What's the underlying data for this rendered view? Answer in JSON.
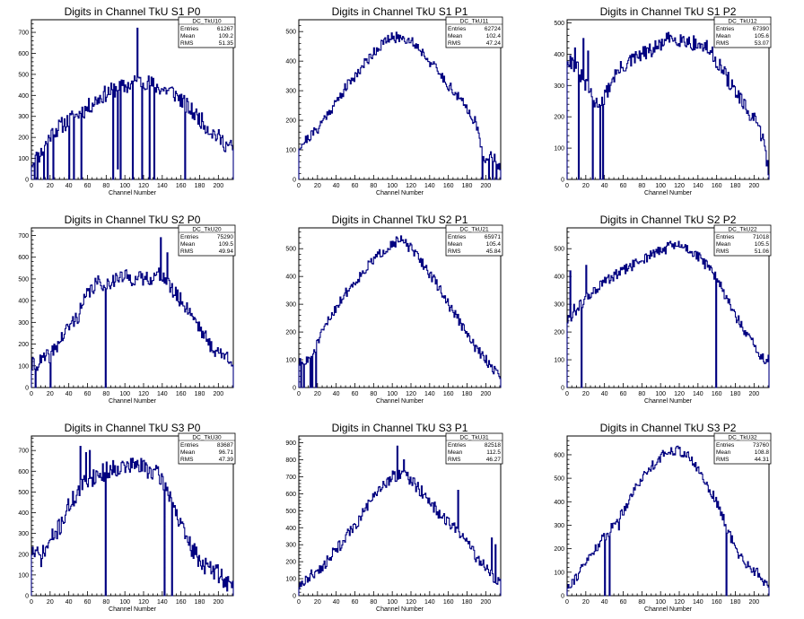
{
  "chart_data": [
    {
      "type": "histogram",
      "title": "Digits in Channel TkU S1 P0",
      "xlabel": "Channel Number",
      "ylabel": "",
      "xlim": [
        0,
        216
      ],
      "ylim": [
        0,
        760
      ],
      "xticks": [
        0,
        20,
        40,
        60,
        80,
        100,
        120,
        140,
        160,
        180,
        200
      ],
      "yticks": [
        0,
        100,
        200,
        300,
        400,
        500,
        600,
        700
      ],
      "stats": {
        "name": "DC_TkU10",
        "entries": "61267",
        "mean": "109.2",
        "rms": "51.35"
      },
      "anchors": [
        [
          0,
          80
        ],
        [
          10,
          120
        ],
        [
          20,
          210
        ],
        [
          30,
          250
        ],
        [
          40,
          280
        ],
        [
          50,
          310
        ],
        [
          60,
          340
        ],
        [
          70,
          380
        ],
        [
          80,
          410
        ],
        [
          90,
          430
        ],
        [
          100,
          440
        ],
        [
          110,
          460
        ],
        [
          120,
          470
        ],
        [
          130,
          450
        ],
        [
          140,
          430
        ],
        [
          150,
          420
        ],
        [
          160,
          380
        ],
        [
          170,
          330
        ],
        [
          180,
          290
        ],
        [
          190,
          240
        ],
        [
          200,
          200
        ],
        [
          210,
          160
        ],
        [
          215,
          150
        ]
      ],
      "noise": 40,
      "seed": 11,
      "spikes": [
        [
          3,
          0
        ],
        [
          6,
          0
        ],
        [
          9,
          110
        ],
        [
          13,
          0
        ],
        [
          17,
          0
        ],
        [
          23,
          0
        ],
        [
          40,
          0
        ],
        [
          45,
          0
        ],
        [
          53,
          0
        ],
        [
          87,
          0
        ],
        [
          92,
          50
        ],
        [
          95,
          0
        ],
        [
          108,
          0
        ],
        [
          113,
          720
        ],
        [
          118,
          0
        ],
        [
          126,
          0
        ],
        [
          131,
          0
        ],
        [
          164,
          0
        ]
      ]
    },
    {
      "type": "histogram",
      "title": "Digits in Channel TkU S1 P1",
      "xlabel": "Channel Number",
      "ylabel": "",
      "xlim": [
        0,
        216
      ],
      "ylim": [
        0,
        540
      ],
      "xticks": [
        0,
        20,
        40,
        60,
        80,
        100,
        120,
        140,
        160,
        180,
        200
      ],
      "yticks": [
        0,
        100,
        200,
        300,
        400,
        500
      ],
      "stats": {
        "name": "DC_TkU11",
        "entries": "62724",
        "mean": "102.4",
        "rms": "47.24"
      },
      "anchors": [
        [
          0,
          110
        ],
        [
          10,
          140
        ],
        [
          20,
          170
        ],
        [
          30,
          220
        ],
        [
          40,
          260
        ],
        [
          50,
          310
        ],
        [
          60,
          350
        ],
        [
          70,
          390
        ],
        [
          80,
          430
        ],
        [
          90,
          460
        ],
        [
          100,
          480
        ],
        [
          110,
          480
        ],
        [
          120,
          470
        ],
        [
          130,
          440
        ],
        [
          140,
          400
        ],
        [
          150,
          360
        ],
        [
          160,
          320
        ],
        [
          170,
          280
        ],
        [
          180,
          240
        ],
        [
          190,
          190
        ],
        [
          195,
          100
        ],
        [
          200,
          70
        ],
        [
          210,
          80
        ],
        [
          215,
          40
        ]
      ],
      "noise": 18,
      "seed": 21,
      "spikes": [
        [
          196,
          0
        ],
        [
          203,
          0
        ],
        [
          207,
          0
        ],
        [
          211,
          0
        ]
      ]
    },
    {
      "type": "histogram",
      "title": "Digits in Channel TkU S1 P2",
      "xlabel": "Channel Number",
      "ylabel": "",
      "xlim": [
        0,
        216
      ],
      "ylim": [
        0,
        510
      ],
      "xticks": [
        0,
        20,
        40,
        60,
        80,
        100,
        120,
        140,
        160,
        180,
        200
      ],
      "yticks": [
        0,
        100,
        200,
        300,
        400,
        500
      ],
      "stats": {
        "name": "DC_TkU12",
        "entries": "67390",
        "mean": "105.6",
        "rms": "53.07"
      },
      "anchors": [
        [
          0,
          390
        ],
        [
          10,
          360
        ],
        [
          20,
          300
        ],
        [
          30,
          240
        ],
        [
          40,
          260
        ],
        [
          50,
          330
        ],
        [
          60,
          360
        ],
        [
          70,
          380
        ],
        [
          80,
          400
        ],
        [
          90,
          410
        ],
        [
          100,
          430
        ],
        [
          110,
          450
        ],
        [
          120,
          450
        ],
        [
          130,
          440
        ],
        [
          140,
          430
        ],
        [
          150,
          420
        ],
        [
          160,
          380
        ],
        [
          170,
          330
        ],
        [
          180,
          280
        ],
        [
          190,
          230
        ],
        [
          200,
          190
        ],
        [
          210,
          130
        ],
        [
          215,
          30
        ]
      ],
      "noise": 25,
      "seed": 31,
      "spikes": [
        [
          8,
          420
        ],
        [
          12,
          0
        ],
        [
          17,
          450
        ],
        [
          22,
          410
        ],
        [
          27,
          0
        ],
        [
          35,
          0
        ],
        [
          38,
          0
        ]
      ]
    },
    {
      "type": "histogram",
      "title": "Digits in Channel TkU S2 P0",
      "xlabel": "Channel Number",
      "ylabel": "",
      "xlim": [
        0,
        216
      ],
      "ylim": [
        0,
        735
      ],
      "xticks": [
        0,
        20,
        40,
        60,
        80,
        100,
        120,
        140,
        160,
        180,
        200
      ],
      "yticks": [
        0,
        100,
        200,
        300,
        400,
        500,
        600,
        700
      ],
      "stats": {
        "name": "DC_TkU20",
        "entries": "75290",
        "mean": "109.5",
        "rms": "49.94"
      },
      "anchors": [
        [
          0,
          100
        ],
        [
          10,
          120
        ],
        [
          20,
          150
        ],
        [
          30,
          210
        ],
        [
          40,
          280
        ],
        [
          50,
          330
        ],
        [
          60,
          430
        ],
        [
          70,
          480
        ],
        [
          80,
          480
        ],
        [
          90,
          500
        ],
        [
          100,
          510
        ],
        [
          110,
          500
        ],
        [
          120,
          500
        ],
        [
          130,
          510
        ],
        [
          140,
          520
        ],
        [
          150,
          450
        ],
        [
          160,
          400
        ],
        [
          170,
          350
        ],
        [
          180,
          280
        ],
        [
          190,
          200
        ],
        [
          200,
          160
        ],
        [
          210,
          140
        ],
        [
          215,
          130
        ]
      ],
      "noise": 35,
      "seed": 41,
      "spikes": [
        [
          4,
          0
        ],
        [
          20,
          0
        ],
        [
          79,
          0
        ],
        [
          138,
          690
        ],
        [
          145,
          620
        ]
      ]
    },
    {
      "type": "histogram",
      "title": "Digits in Channel TkU S2 P1",
      "xlabel": "Channel Number",
      "ylabel": "",
      "xlim": [
        0,
        216
      ],
      "ylim": [
        0,
        575
      ],
      "xticks": [
        0,
        20,
        40,
        60,
        80,
        100,
        120,
        140,
        160,
        180,
        200
      ],
      "yticks": [
        0,
        100,
        200,
        300,
        400,
        500
      ],
      "stats": {
        "name": "DC_TkU21",
        "entries": "65971",
        "mean": "105.4",
        "rms": "45.84"
      },
      "anchors": [
        [
          0,
          90
        ],
        [
          10,
          90
        ],
        [
          20,
          160
        ],
        [
          30,
          230
        ],
        [
          40,
          290
        ],
        [
          50,
          340
        ],
        [
          60,
          380
        ],
        [
          70,
          420
        ],
        [
          80,
          460
        ],
        [
          90,
          490
        ],
        [
          100,
          520
        ],
        [
          110,
          530
        ],
        [
          120,
          500
        ],
        [
          130,
          460
        ],
        [
          140,
          410
        ],
        [
          150,
          360
        ],
        [
          160,
          300
        ],
        [
          170,
          250
        ],
        [
          180,
          190
        ],
        [
          190,
          140
        ],
        [
          200,
          100
        ],
        [
          210,
          60
        ],
        [
          215,
          50
        ]
      ],
      "noise": 18,
      "seed": 51,
      "spikes": [
        [
          2,
          0
        ],
        [
          5,
          0
        ],
        [
          8,
          110
        ],
        [
          12,
          0
        ],
        [
          14,
          0
        ],
        [
          18,
          0
        ]
      ]
    },
    {
      "type": "histogram",
      "title": "Digits in Channel TkU S2 P2",
      "xlabel": "Channel Number",
      "ylabel": "",
      "xlim": [
        0,
        216
      ],
      "ylim": [
        0,
        575
      ],
      "xticks": [
        0,
        20,
        40,
        60,
        80,
        100,
        120,
        140,
        160,
        180,
        200
      ],
      "yticks": [
        0,
        100,
        200,
        300,
        400,
        500
      ],
      "stats": {
        "name": "DC_TkU22",
        "entries": "71018",
        "mean": "105.5",
        "rms": "51.06"
      },
      "anchors": [
        [
          0,
          240
        ],
        [
          10,
          280
        ],
        [
          20,
          320
        ],
        [
          30,
          350
        ],
        [
          40,
          380
        ],
        [
          50,
          400
        ],
        [
          60,
          420
        ],
        [
          70,
          440
        ],
        [
          80,
          460
        ],
        [
          90,
          480
        ],
        [
          100,
          490
        ],
        [
          110,
          510
        ],
        [
          120,
          510
        ],
        [
          130,
          500
        ],
        [
          140,
          470
        ],
        [
          150,
          440
        ],
        [
          160,
          390
        ],
        [
          170,
          330
        ],
        [
          180,
          260
        ],
        [
          190,
          200
        ],
        [
          200,
          150
        ],
        [
          210,
          100
        ],
        [
          215,
          100
        ]
      ],
      "noise": 20,
      "seed": 61,
      "spikes": [
        [
          3,
          420
        ],
        [
          7,
          300
        ],
        [
          15,
          0
        ],
        [
          20,
          440
        ],
        [
          159,
          0
        ]
      ]
    },
    {
      "type": "histogram",
      "title": "Digits in Channel TkU S3 P0",
      "xlabel": "Channel Number",
      "ylabel": "",
      "xlim": [
        0,
        216
      ],
      "ylim": [
        0,
        770
      ],
      "xticks": [
        0,
        20,
        40,
        60,
        80,
        100,
        120,
        140,
        160,
        180,
        200
      ],
      "yticks": [
        0,
        100,
        200,
        300,
        400,
        500,
        600,
        700
      ],
      "stats": {
        "name": "DC_TkU30",
        "entries": "83687",
        "mean": "96.71",
        "rms": "47.39"
      },
      "anchors": [
        [
          0,
          220
        ],
        [
          10,
          180
        ],
        [
          20,
          260
        ],
        [
          30,
          330
        ],
        [
          40,
          430
        ],
        [
          50,
          500
        ],
        [
          60,
          560
        ],
        [
          70,
          580
        ],
        [
          80,
          600
        ],
        [
          90,
          620
        ],
        [
          100,
          620
        ],
        [
          110,
          630
        ],
        [
          120,
          620
        ],
        [
          130,
          600
        ],
        [
          140,
          560
        ],
        [
          150,
          470
        ],
        [
          160,
          330
        ],
        [
          170,
          240
        ],
        [
          180,
          170
        ],
        [
          190,
          130
        ],
        [
          200,
          110
        ],
        [
          210,
          60
        ],
        [
          215,
          40
        ]
      ],
      "noise": 45,
      "seed": 71,
      "spikes": [
        [
          52,
          720
        ],
        [
          58,
          690
        ],
        [
          62,
          700
        ],
        [
          79,
          0
        ],
        [
          142,
          0
        ],
        [
          150,
          0
        ]
      ]
    },
    {
      "type": "histogram",
      "title": "Digits in Channel TkU S3 P1",
      "xlabel": "Channel Number",
      "ylabel": "",
      "xlim": [
        0,
        216
      ],
      "ylim": [
        0,
        940
      ],
      "xticks": [
        0,
        20,
        40,
        60,
        80,
        100,
        120,
        140,
        160,
        180,
        200
      ],
      "yticks": [
        0,
        100,
        200,
        300,
        400,
        500,
        600,
        700,
        800,
        900
      ],
      "stats": {
        "name": "DC_TkU31",
        "entries": "82518",
        "mean": "112.5",
        "rms": "46.27"
      },
      "anchors": [
        [
          0,
          60
        ],
        [
          10,
          100
        ],
        [
          20,
          150
        ],
        [
          30,
          200
        ],
        [
          40,
          270
        ],
        [
          50,
          340
        ],
        [
          60,
          410
        ],
        [
          70,
          500
        ],
        [
          80,
          570
        ],
        [
          90,
          650
        ],
        [
          100,
          700
        ],
        [
          110,
          720
        ],
        [
          120,
          680
        ],
        [
          130,
          620
        ],
        [
          140,
          560
        ],
        [
          150,
          480
        ],
        [
          160,
          430
        ],
        [
          170,
          380
        ],
        [
          180,
          320
        ],
        [
          190,
          230
        ],
        [
          200,
          160
        ],
        [
          210,
          100
        ],
        [
          215,
          80
        ]
      ],
      "noise": 35,
      "seed": 81,
      "spikes": [
        [
          105,
          880
        ],
        [
          112,
          800
        ],
        [
          170,
          620
        ],
        [
          206,
          340
        ],
        [
          210,
          300
        ]
      ]
    },
    {
      "type": "histogram",
      "title": "Digits in Channel TkU S3 P2",
      "xlabel": "Channel Number",
      "ylabel": "",
      "xlim": [
        0,
        216
      ],
      "ylim": [
        0,
        680
      ],
      "xticks": [
        0,
        20,
        40,
        60,
        80,
        100,
        120,
        140,
        160,
        180,
        200
      ],
      "yticks": [
        0,
        100,
        200,
        300,
        400,
        500,
        600
      ],
      "stats": {
        "name": "DC_TkU32",
        "entries": "73760",
        "mean": "108.8",
        "rms": "44.31"
      },
      "anchors": [
        [
          0,
          40
        ],
        [
          10,
          80
        ],
        [
          20,
          140
        ],
        [
          30,
          200
        ],
        [
          40,
          250
        ],
        [
          50,
          300
        ],
        [
          60,
          360
        ],
        [
          70,
          440
        ],
        [
          80,
          500
        ],
        [
          90,
          550
        ],
        [
          100,
          590
        ],
        [
          110,
          620
        ],
        [
          120,
          620
        ],
        [
          130,
          590
        ],
        [
          140,
          540
        ],
        [
          150,
          470
        ],
        [
          160,
          400
        ],
        [
          170,
          300
        ],
        [
          180,
          200
        ],
        [
          190,
          140
        ],
        [
          200,
          110
        ],
        [
          210,
          70
        ],
        [
          215,
          30
        ]
      ],
      "noise": 22,
      "seed": 91,
      "spikes": [
        [
          40,
          0
        ],
        [
          45,
          0
        ],
        [
          55,
          280
        ],
        [
          170,
          0
        ]
      ]
    }
  ]
}
